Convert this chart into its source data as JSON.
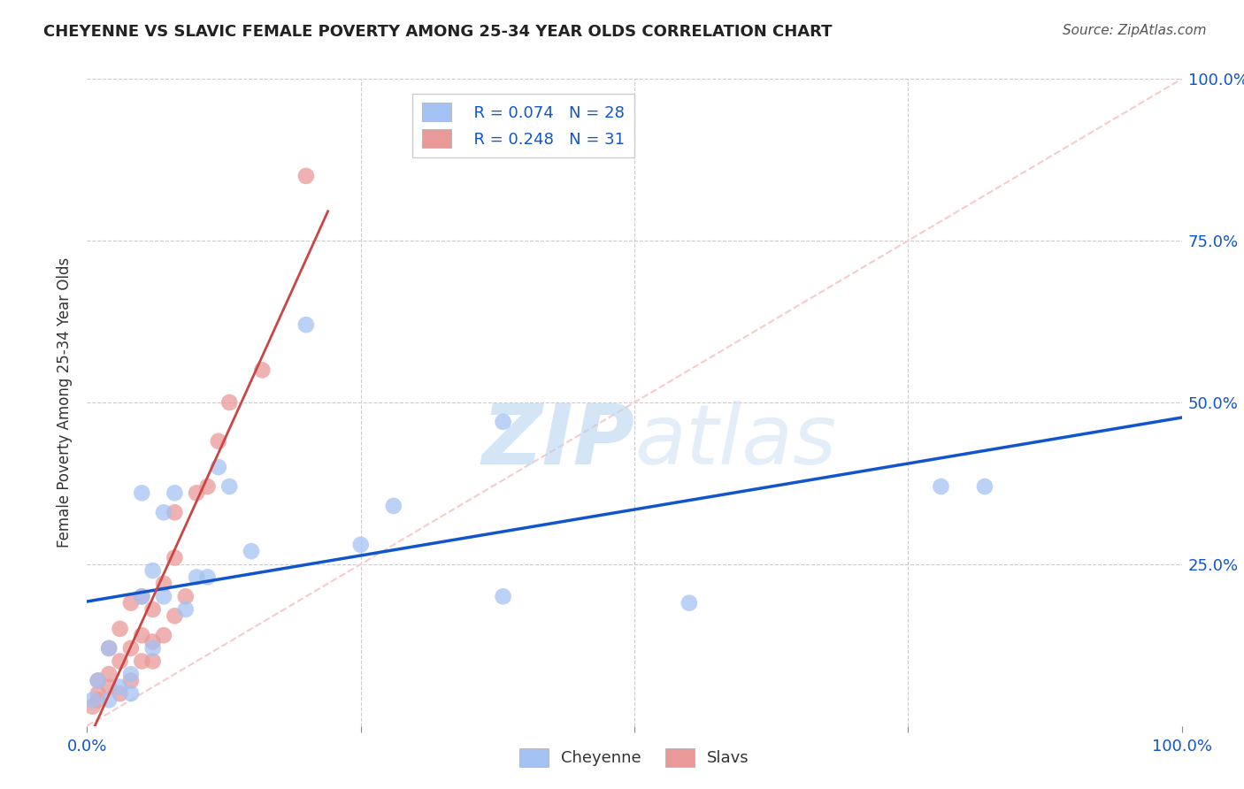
{
  "title": "CHEYENNE VS SLAVIC FEMALE POVERTY AMONG 25-34 YEAR OLDS CORRELATION CHART",
  "source": "Source: ZipAtlas.com",
  "ylabel": "Female Poverty Among 25-34 Year Olds",
  "xlim": [
    0,
    1.0
  ],
  "ylim": [
    0,
    1.0
  ],
  "cheyenne_color": "#a4c2f4",
  "slavic_color": "#ea9999",
  "cheyenne_R": 0.074,
  "cheyenne_N": 28,
  "slavic_R": 0.248,
  "slavic_N": 31,
  "cheyenne_line_color": "#1155cc",
  "slavic_line_color": "#cc4444",
  "diagonal_color": "#f4cccc",
  "watermark_color": "#d6e8f7",
  "cheyenne_x": [
    0.005,
    0.01,
    0.02,
    0.02,
    0.03,
    0.04,
    0.04,
    0.05,
    0.05,
    0.06,
    0.06,
    0.07,
    0.07,
    0.08,
    0.09,
    0.1,
    0.11,
    0.12,
    0.13,
    0.15,
    0.2,
    0.25,
    0.28,
    0.38,
    0.38,
    0.55,
    0.78,
    0.82
  ],
  "cheyenne_y": [
    0.04,
    0.07,
    0.04,
    0.12,
    0.06,
    0.05,
    0.08,
    0.2,
    0.36,
    0.12,
    0.24,
    0.2,
    0.33,
    0.36,
    0.18,
    0.23,
    0.23,
    0.4,
    0.37,
    0.27,
    0.62,
    0.28,
    0.34,
    0.2,
    0.47,
    0.19,
    0.37,
    0.37
  ],
  "slavic_x": [
    0.005,
    0.01,
    0.01,
    0.01,
    0.02,
    0.02,
    0.02,
    0.03,
    0.03,
    0.03,
    0.04,
    0.04,
    0.04,
    0.05,
    0.05,
    0.05,
    0.06,
    0.06,
    0.06,
    0.07,
    0.07,
    0.08,
    0.08,
    0.08,
    0.09,
    0.1,
    0.11,
    0.12,
    0.13,
    0.16,
    0.2
  ],
  "slavic_y": [
    0.03,
    0.04,
    0.05,
    0.07,
    0.06,
    0.08,
    0.12,
    0.05,
    0.1,
    0.15,
    0.07,
    0.12,
    0.19,
    0.1,
    0.14,
    0.2,
    0.1,
    0.13,
    0.18,
    0.14,
    0.22,
    0.17,
    0.26,
    0.33,
    0.2,
    0.36,
    0.37,
    0.44,
    0.5,
    0.55,
    0.85
  ]
}
